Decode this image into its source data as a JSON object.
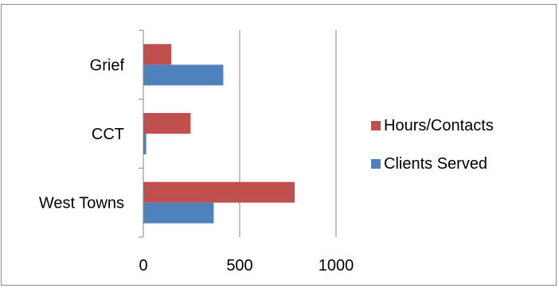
{
  "chart_data": {
    "type": "bar",
    "orientation": "horizontal",
    "categories": [
      "West Towns",
      "CCT",
      "Grief"
    ],
    "series": [
      {
        "name": "Clients Served",
        "color": "#4f81bd",
        "values": [
          365,
          15,
          415
        ]
      },
      {
        "name": "Hours/Contacts",
        "color": "#c0504d",
        "values": [
          785,
          245,
          145
        ]
      }
    ],
    "xlim": [
      0,
      1000
    ],
    "x_ticks": [
      0,
      500,
      1000
    ],
    "grid": "vertical",
    "legend": {
      "position": "right",
      "order": [
        "Hours/Contacts",
        "Clients Served"
      ]
    }
  }
}
